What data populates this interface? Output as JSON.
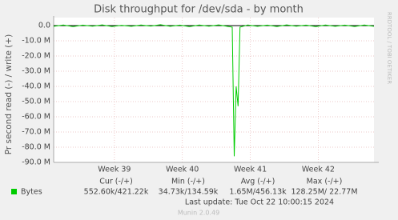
{
  "chart_data": {
    "type": "line",
    "title": "Disk throughput for /dev/sda - by month",
    "y_label": "Pr second read (-) / write (+)",
    "side_text": "RRDTOOL / TOBI OETIKER",
    "xlim": [
      0,
      33
    ],
    "xticks": [
      {
        "value": 6.26,
        "label": "Week 39"
      },
      {
        "value": 13.26,
        "label": "Week 40"
      },
      {
        "value": 20.26,
        "label": "Week 41"
      },
      {
        "value": 27.26,
        "label": "Week 42"
      }
    ],
    "ylim": [
      -90000000,
      0
    ],
    "yticks": [
      {
        "value": 0,
        "label": "0.0"
      },
      {
        "value": -10000000,
        "label": "-10.0 M"
      },
      {
        "value": -20000000,
        "label": "-20.0 M"
      },
      {
        "value": -30000000,
        "label": "-30.0 M"
      },
      {
        "value": -40000000,
        "label": "-40.0 M"
      },
      {
        "value": -50000000,
        "label": "-50.0 M"
      },
      {
        "value": -60000000,
        "label": "-60.0 M"
      },
      {
        "value": -70000000,
        "label": "-70.0 M"
      },
      {
        "value": -80000000,
        "label": "-80.0 M"
      },
      {
        "value": -90000000,
        "label": "-90.0 M"
      }
    ],
    "grid": true,
    "series": [
      {
        "name": "Bytes",
        "color": "#00cc00",
        "x": [
          0,
          1,
          2,
          3,
          4,
          5,
          6,
          7,
          8,
          9,
          10,
          11,
          12,
          13,
          14,
          15,
          16,
          17,
          18,
          18.4,
          18.6,
          18.8,
          19.0,
          19.2,
          20,
          21,
          22,
          23,
          24,
          25,
          26,
          27,
          28,
          29,
          30,
          31,
          32,
          33
        ],
        "values": [
          -500000,
          400000,
          -700000,
          300000,
          -400000,
          500000,
          -600000,
          200000,
          -500000,
          400000,
          -300000,
          600000,
          -500000,
          300000,
          -700000,
          400000,
          -400000,
          500000,
          -600000,
          -1000000,
          -86000000,
          -40000000,
          -53000000,
          -1000000,
          400000,
          -500000,
          300000,
          -600000,
          500000,
          -400000,
          300000,
          -700000,
          400000,
          -500000,
          300000,
          -600000,
          400000,
          -500000
        ]
      }
    ],
    "legend": {
      "headers": [
        "Cur (-/+)",
        "Min (-/+)",
        "Avg (-/+)",
        "Max (-/+)"
      ],
      "rows": [
        [
          "552.60k/421.22k",
          "34.73k/134.59k",
          "1.65M/456.13k",
          "128.25M/ 22.77M"
        ]
      ]
    },
    "last_update": "Last update: Tue Oct 22 10:00:15 2024",
    "footer": "Munin 2.0.49"
  }
}
